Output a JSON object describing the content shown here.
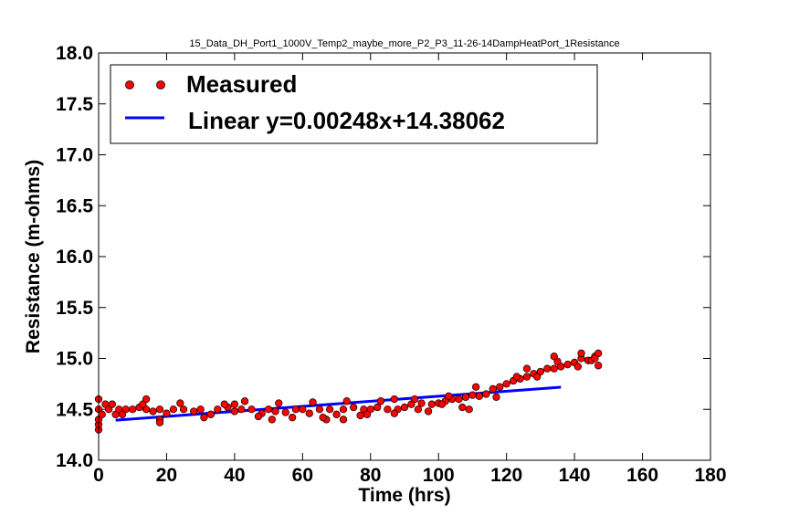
{
  "chart_data": {
    "type": "scatter",
    "title": "15_Data_DH_Port1_1000V_Temp2_maybe_more_P2_P3_11-26-14DampHeatPort_1Resistance",
    "xlabel": "Time (hrs)",
    "ylabel": "Resistance (m-ohms)",
    "xlim": [
      0,
      180
    ],
    "ylim": [
      14.0,
      18.0
    ],
    "x_ticks": [
      "0",
      "20",
      "40",
      "60",
      "80",
      "100",
      "120",
      "140",
      "160",
      "180"
    ],
    "y_ticks": [
      "14.0",
      "14.5",
      "15.0",
      "15.5",
      "16.0",
      "16.5",
      "17.0",
      "17.5",
      "18.0"
    ],
    "grid": false,
    "legend": {
      "placement": "top-left",
      "entries": [
        {
          "label": "Measured",
          "marker": "circle",
          "color": "#ff0000"
        },
        {
          "label": "Linear y=0.00248x+14.38062",
          "marker": "line",
          "color": "#0000ff"
        }
      ]
    },
    "series": [
      {
        "name": "Measured",
        "kind": "scatter",
        "color": "#ff0000",
        "x": [
          0,
          0,
          0,
          0,
          0,
          1,
          2,
          3,
          4,
          5,
          6,
          8,
          10,
          12,
          14,
          16,
          18,
          20,
          22,
          25,
          28,
          30,
          33,
          35,
          38,
          40,
          42,
          45,
          48,
          50,
          52,
          55,
          58,
          60,
          62,
          65,
          68,
          70,
          72,
          75,
          78,
          80,
          82,
          85,
          88,
          90,
          92,
          95,
          98,
          100,
          102,
          104,
          106,
          108,
          110,
          112,
          114,
          116,
          118,
          120,
          122,
          124,
          126,
          128,
          130,
          132,
          134,
          136,
          138,
          140,
          142,
          144,
          146,
          147,
          147,
          7,
          13,
          18,
          24,
          31,
          37,
          43,
          47,
          53,
          57,
          63,
          67,
          73,
          77,
          83,
          87,
          93,
          97,
          103,
          107,
          111,
          117,
          123,
          129,
          135,
          141,
          145,
          14,
          18,
          40,
          51,
          66,
          72,
          79,
          87,
          94,
          101,
          109,
          126,
          134,
          142,
          146
        ],
        "y": [
          14.3,
          14.35,
          14.4,
          14.5,
          14.6,
          14.45,
          14.55,
          14.5,
          14.55,
          14.45,
          14.5,
          14.5,
          14.5,
          14.52,
          14.5,
          14.48,
          14.5,
          14.46,
          14.5,
          14.5,
          14.48,
          14.5,
          14.45,
          14.5,
          14.52,
          14.48,
          14.5,
          14.5,
          14.46,
          14.5,
          14.48,
          14.47,
          14.5,
          14.5,
          14.46,
          14.5,
          14.5,
          14.45,
          14.5,
          14.52,
          14.5,
          14.5,
          14.52,
          14.5,
          14.5,
          14.52,
          14.55,
          14.56,
          14.55,
          14.56,
          14.58,
          14.6,
          14.6,
          14.62,
          14.64,
          14.63,
          14.65,
          14.7,
          14.72,
          14.75,
          14.78,
          14.8,
          14.82,
          14.85,
          14.87,
          14.9,
          14.9,
          14.92,
          14.94,
          14.96,
          15.0,
          14.98,
          15.02,
          15.05,
          14.93,
          14.45,
          14.55,
          14.4,
          14.56,
          14.42,
          14.55,
          14.58,
          14.43,
          14.56,
          14.42,
          14.57,
          14.4,
          14.58,
          14.44,
          14.58,
          14.46,
          14.6,
          14.48,
          14.63,
          14.52,
          14.72,
          14.62,
          14.82,
          14.82,
          14.97,
          14.92,
          14.98,
          14.6,
          14.37,
          14.55,
          14.4,
          14.42,
          14.4,
          14.45,
          14.6,
          14.5,
          14.55,
          14.5,
          14.9,
          15.02,
          15.05,
          15.0
        ]
      },
      {
        "name": "Linear y=0.00248x+14.38062",
        "kind": "line",
        "color": "#0000ff",
        "x": [
          5,
          136
        ],
        "y": [
          14.393,
          14.718
        ]
      }
    ]
  }
}
